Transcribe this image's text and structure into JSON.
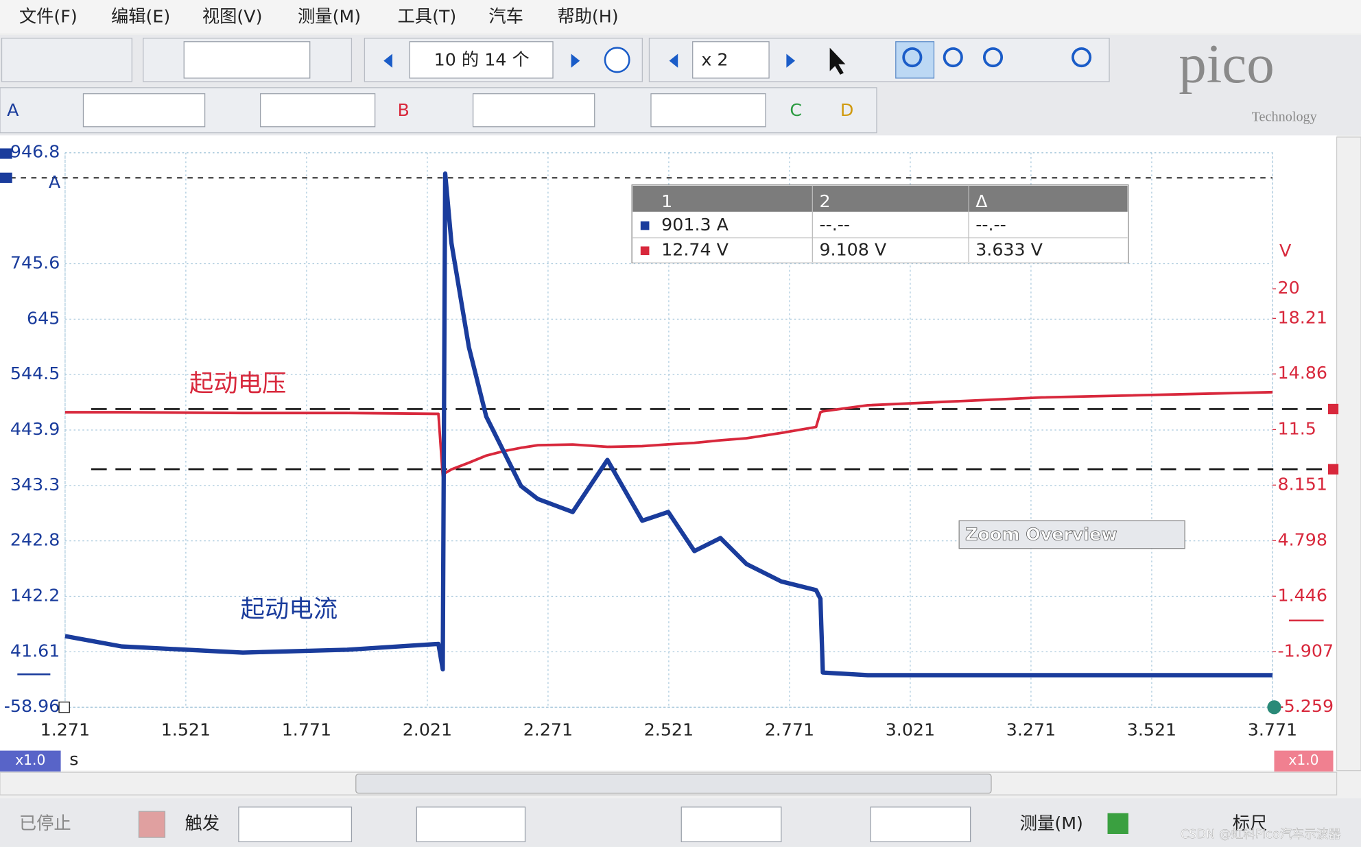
{
  "menu": [
    "文件(F)",
    "编辑(E)",
    "视图(V)",
    "测量(M)",
    "工具(T)",
    "汽车",
    "帮助(H)"
  ],
  "toolbar": {
    "capture": "10 的 14 个",
    "zoom": "x 2"
  },
  "channels": [
    "A",
    "B",
    "C",
    "D"
  ],
  "brand": {
    "logo": "pico",
    "sub": "Technology"
  },
  "measurements": {
    "headers": [
      "1",
      "2",
      "Δ"
    ],
    "rows": [
      [
        "901.3 A",
        "--.--",
        "--.--"
      ],
      [
        "12.74 V",
        "9.108 V",
        "3.633 V"
      ]
    ]
  },
  "zoom_overview": "Zoom Overview",
  "chart_data": {
    "type": "line",
    "x_label": "s",
    "y_label": "A",
    "y2_label": "V",
    "x_scale": "x1.0",
    "y2_scale": "x1.0",
    "annotations": [
      "起动电压",
      "起动电流"
    ],
    "x": [
      1.271,
      1.388,
      1.639,
      1.855,
      2.044,
      2.053,
      2.058,
      2.071,
      2.107,
      2.143,
      2.179,
      2.215,
      2.25,
      2.322,
      2.394,
      2.466,
      2.52,
      2.574,
      2.628,
      2.682,
      2.754,
      2.826,
      2.835,
      2.84,
      2.933,
      3.293,
      3.771
    ],
    "series": [
      {
        "name": "A",
        "color": "#1a3c9c",
        "values": [
          70.1,
          51.3,
          40.2,
          45.4,
          55.9,
          10,
          909.0,
          783.1,
          594.2,
          468.3,
          405.4,
          342.4,
          318.8,
          295.2,
          389.6,
          279.5,
          295.2,
          224.4,
          248.0,
          200.8,
          169.3,
          153.5,
          137.8,
          4.0,
          -0.7,
          -0.7,
          -0.7
        ]
      },
      {
        "name": "V",
        "color": "#d8283c",
        "axis": "y2",
        "values": [
          12.55,
          12.55,
          12.5,
          12.5,
          12.45,
          8.7,
          8.88,
          9.1,
          9.5,
          9.93,
          10.2,
          10.4,
          10.56,
          10.6,
          10.46,
          10.5,
          10.61,
          10.7,
          10.85,
          10.98,
          11.3,
          11.66,
          12.55,
          12.6,
          12.97,
          13.44,
          13.76
        ]
      }
    ],
    "xlim": [
      1.271,
      3.771
    ],
    "xticks": [
      1.271,
      1.521,
      1.771,
      2.021,
      2.271,
      2.521,
      2.771,
      3.021,
      3.271,
      3.521,
      3.771
    ],
    "ylim": [
      -58.96,
      946.8
    ],
    "yticks": [
      -58.96,
      41.61,
      142.2,
      242.8,
      343.3,
      443.9,
      544.5,
      645.0,
      745.6,
      946.8
    ],
    "y2lim": [
      -5.259,
      28.21
    ],
    "y2ticks": [
      -5.259,
      -1.907,
      1.446,
      4.798,
      8.151,
      11.5,
      14.86,
      18.21,
      20.0
    ],
    "y_rulers": [
      901.3
    ],
    "y2_rulers": [
      12.74,
      9.108
    ],
    "grid": true
  },
  "status": {
    "state": "已停止",
    "trigger": "触发",
    "measure": "测量(M)",
    "ruler": "标尺"
  },
  "watermark": "CSDN @虹科Pico汽车示波器"
}
